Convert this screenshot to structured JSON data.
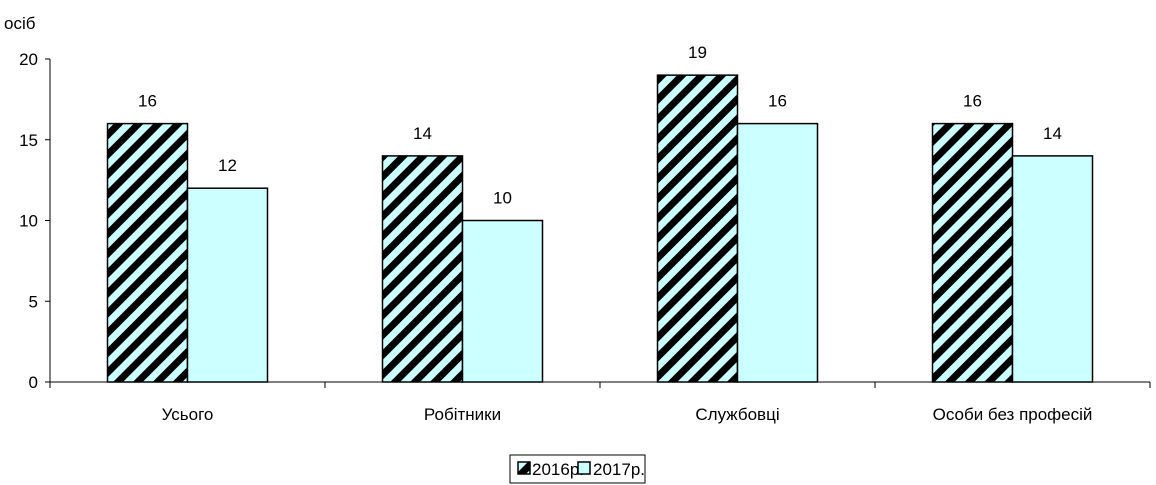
{
  "chart_data": {
    "type": "bar",
    "ylabel": "осіб",
    "ylim": [
      0,
      20
    ],
    "yticks": [
      0,
      5,
      10,
      15,
      20
    ],
    "categories": [
      "Усього",
      "Робітники",
      "Службовці",
      "Особи без  професій"
    ],
    "series": [
      {
        "name": "2016р.",
        "values": [
          16,
          14,
          19,
          16
        ],
        "fill": "#ccffff",
        "pattern": "diagonal-stripes"
      },
      {
        "name": "2017р.",
        "values": [
          12,
          10,
          16,
          14
        ],
        "fill": "#ccffff",
        "pattern": "solid"
      }
    ],
    "data_labels": true,
    "legend": "bottom-center",
    "grid": false
  }
}
